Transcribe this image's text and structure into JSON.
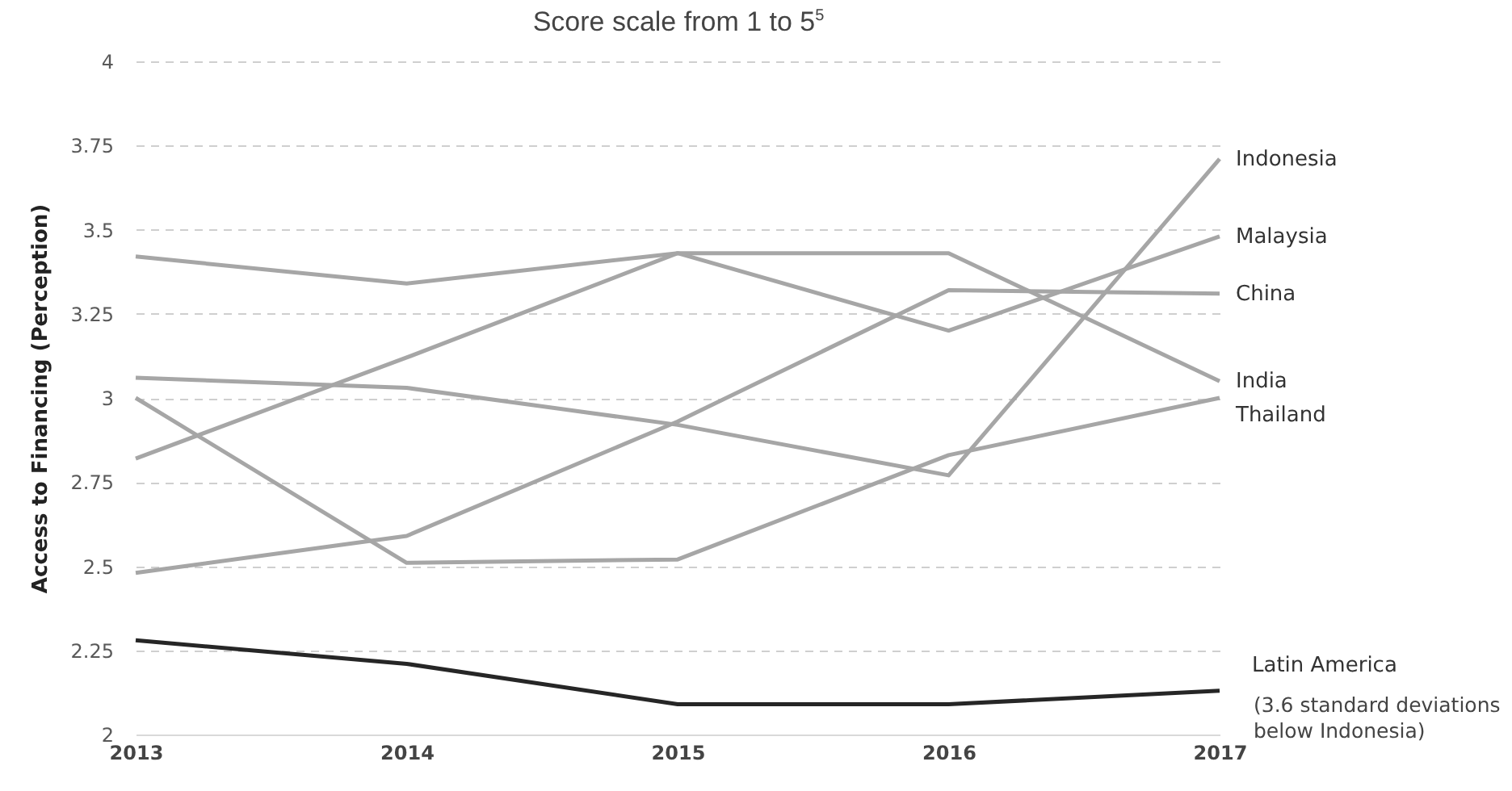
{
  "chart_data": {
    "type": "line",
    "title": "Score scale from 1 to 5$^{5}$",
    "ylabel": "Access to Financing (Perception)",
    "categories": [
      "2013",
      "2014",
      "2015",
      "2016",
      "2017"
    ],
    "series": [
      {
        "name": "India",
        "color": "#a6a6a6",
        "values": [
          3.42,
          3.34,
          3.43,
          3.43,
          3.05
        ]
      },
      {
        "name": "Malaysia",
        "color": "#a6a6a6",
        "values": [
          2.82,
          3.12,
          3.43,
          3.2,
          3.48
        ]
      },
      {
        "name": "Indonesia",
        "color": "#a6a6a6",
        "values": [
          3.06,
          3.03,
          2.92,
          2.77,
          3.71
        ]
      },
      {
        "name": "Thailand",
        "color": "#a6a6a6",
        "values": [
          3.0,
          2.51,
          2.52,
          2.83,
          3.0
        ]
      },
      {
        "name": "China",
        "color": "#a6a6a6",
        "values": [
          2.48,
          2.59,
          2.93,
          3.32,
          3.31
        ]
      },
      {
        "name": "Latin America",
        "color": "#262626",
        "values": [
          2.28,
          2.21,
          2.09,
          2.09,
          2.13
        ]
      }
    ],
    "annotations": [
      "(3.6 standard deviations below Indonesia)"
    ],
    "ylim": [
      2,
      4
    ],
    "yticks": [
      2,
      2.25,
      2.5,
      2.75,
      3,
      3.25,
      3.5,
      3.75,
      4
    ],
    "grid": "y",
    "legend": false,
    "marker": "none",
    "line_style": "solid"
  }
}
